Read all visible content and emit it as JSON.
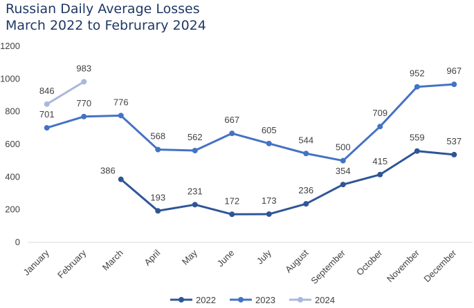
{
  "chart_data": {
    "type": "line",
    "title": "Russian Daily Average Losses",
    "subtitle": "March 2022 to Februrary 2024",
    "categories": [
      "January",
      "February",
      "March",
      "April",
      "May",
      "June",
      "July",
      "August",
      "September",
      "October",
      "November",
      "December"
    ],
    "ylim": [
      0,
      1200
    ],
    "yticks": [
      0,
      200,
      400,
      600,
      800,
      1000,
      1200
    ],
    "grid": false,
    "legend_position": "bottom",
    "series": [
      {
        "name": "2022",
        "color": "#2f5597",
        "values": [
          null,
          null,
          386,
          193,
          231,
          172,
          173,
          236,
          354,
          415,
          559,
          537
        ]
      },
      {
        "name": "2023",
        "color": "#4472c4",
        "values": [
          701,
          770,
          776,
          568,
          562,
          667,
          605,
          544,
          500,
          709,
          952,
          967
        ]
      },
      {
        "name": "2024",
        "color": "#a9b8dc",
        "values": [
          846,
          983,
          null,
          null,
          null,
          null,
          null,
          null,
          null,
          null,
          null,
          null
        ]
      }
    ]
  }
}
